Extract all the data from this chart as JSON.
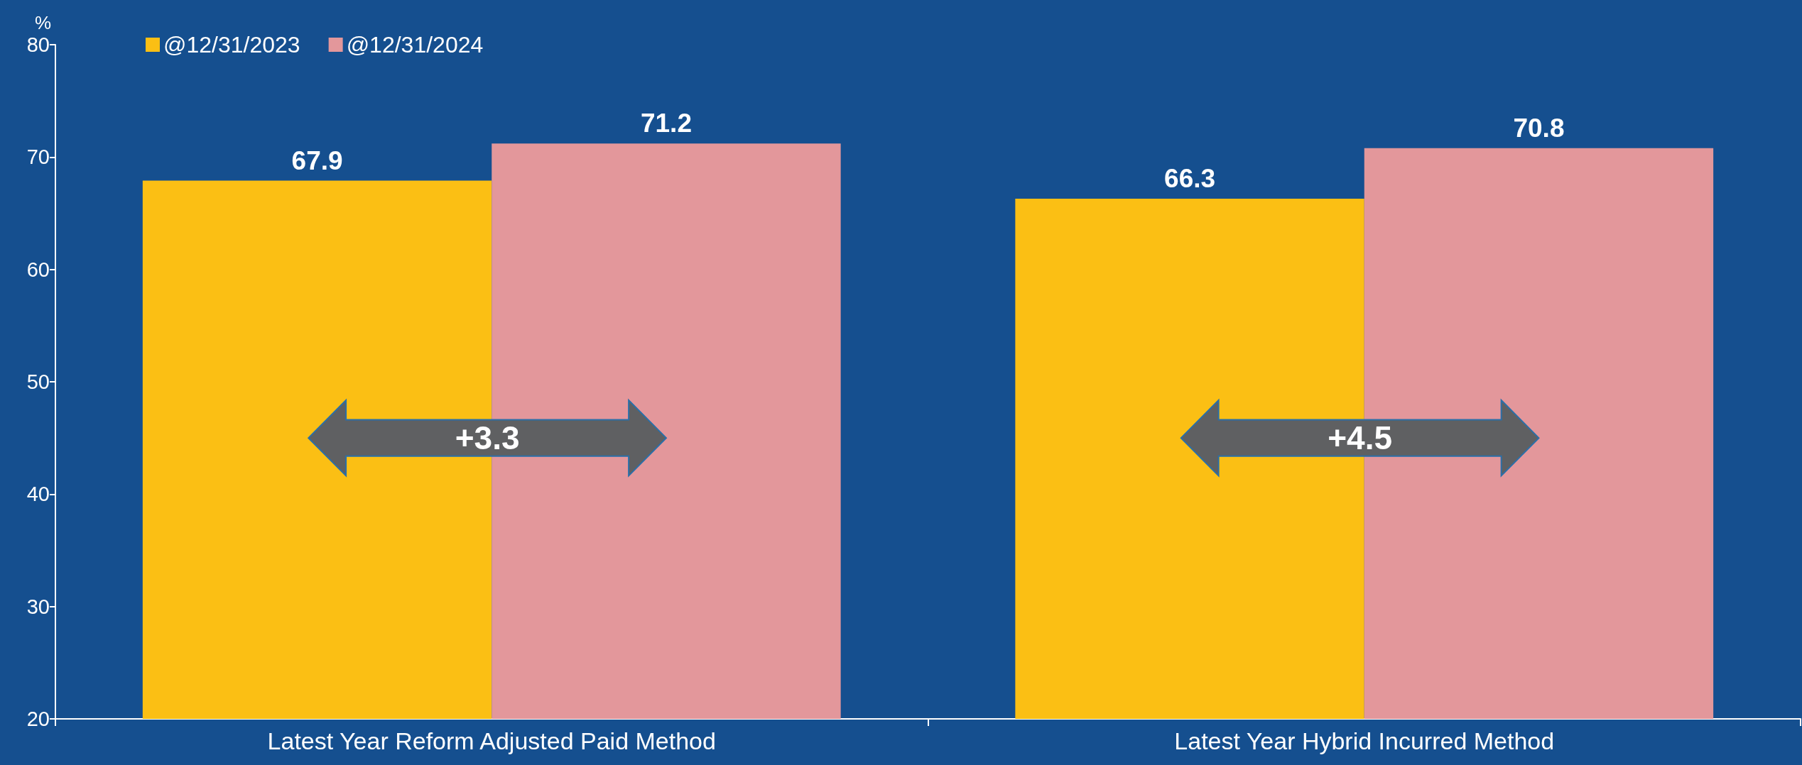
{
  "chart_data": {
    "type": "bar",
    "ylabel": "%",
    "categories": [
      "Latest Year Reform Adjusted Paid Method",
      "Latest Year Hybrid Incurred Method"
    ],
    "series": [
      {
        "name": "@12/31/2023",
        "color": "#fbbf14",
        "values": [
          67.9,
          66.3
        ]
      },
      {
        "name": "@12/31/2024",
        "color": "#e3979b",
        "values": [
          71.2,
          70.8
        ]
      }
    ],
    "ylim": [
      20,
      80
    ],
    "yticks": [
      20,
      30,
      40,
      50,
      60,
      70,
      80
    ],
    "data_labels": true,
    "grid": false,
    "legend": "top left",
    "annotations": [
      {
        "text": "+3.3",
        "x": "Latest Year Reform Adjusted Paid Method",
        "y": 45
      },
      {
        "text": "+4.5",
        "x": "Latest Year Hybrid Incurred Method",
        "y": 45
      }
    ]
  }
}
